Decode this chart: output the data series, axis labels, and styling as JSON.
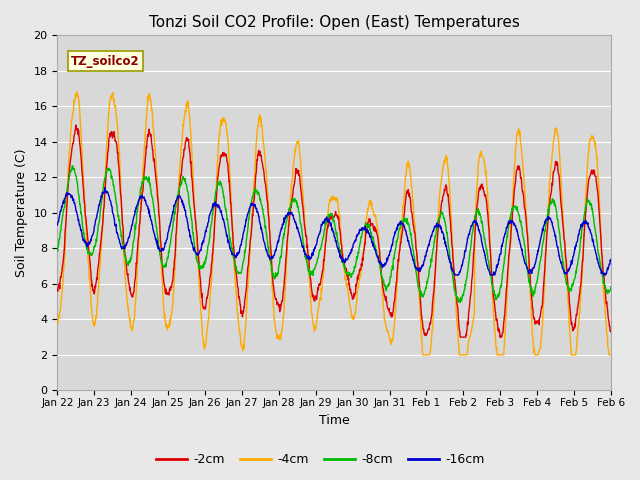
{
  "title": "Tonzi Soil CO2 Profile: Open (East) Temperatures",
  "xlabel": "Time",
  "ylabel": "Soil Temperature (C)",
  "ylim": [
    0,
    20
  ],
  "xlim": [
    0,
    15
  ],
  "legend_label": "TZ_soilco2",
  "series_labels": [
    "-2cm",
    "-4cm",
    "-8cm",
    "-16cm"
  ],
  "series_colors": [
    "#dd0000",
    "#ffaa00",
    "#00bb00",
    "#0000cc"
  ],
  "bg_color": "#e8e8e8",
  "plot_bg_color": "#d8d8d8",
  "tick_dates": [
    "Jan 22",
    "Jan 23",
    "Jan 24",
    "Jan 25",
    "Jan 26",
    "Jan 27",
    "Jan 28",
    "Jan 29",
    "Jan 30",
    "Jan 31",
    "Feb 1",
    "Feb 2",
    "Feb 3",
    "Feb 4",
    "Feb 5",
    "Feb 6"
  ],
  "yticks": [
    0,
    2,
    4,
    6,
    8,
    10,
    12,
    14,
    16,
    18,
    20
  ],
  "n_days": 15,
  "pts_per_day": 96
}
